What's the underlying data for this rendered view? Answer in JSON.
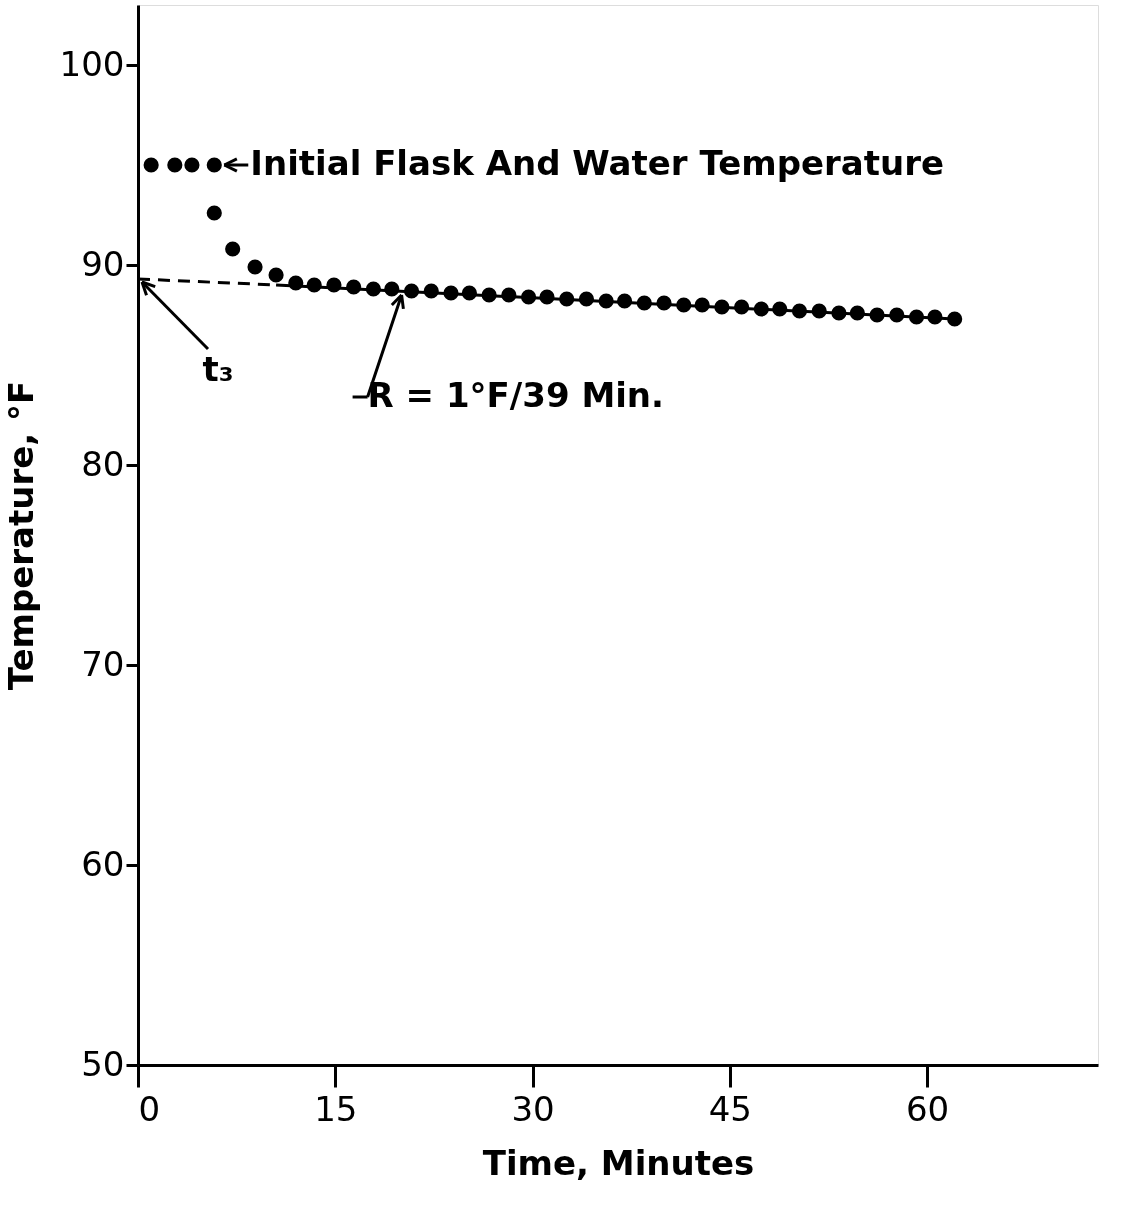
{
  "chart_data": {
    "type": "scatter",
    "xlabel": "Time, Minutes",
    "ylabel": "Temperature, °F",
    "xlim": [
      0,
      73
    ],
    "ylim": [
      50,
      103
    ],
    "xticks": [
      0,
      15,
      30,
      45,
      60
    ],
    "yticks": [
      50,
      60,
      70,
      80,
      90,
      100
    ],
    "grid": false,
    "series": [
      {
        "marker": "circle",
        "color": "#000000",
        "x": [
          1.0,
          2.8,
          4.1,
          5.8,
          5.8,
          7.2,
          8.9,
          10.5,
          12.0,
          13.4,
          14.9,
          16.4,
          17.9,
          19.3,
          20.8,
          22.3,
          23.8,
          25.2,
          26.7,
          28.2,
          29.7,
          31.1,
          32.6,
          34.1,
          35.6,
          37.0,
          38.5,
          40.0,
          41.5,
          42.9,
          44.4,
          45.9,
          47.4,
          48.8,
          50.3,
          51.8,
          53.3,
          54.7,
          56.2,
          57.7,
          59.2,
          60.6,
          62.1
        ],
        "values": [
          95.0,
          95.0,
          95.0,
          95.0,
          92.6,
          90.8,
          89.9,
          89.5,
          89.1,
          89.0,
          89.0,
          88.9,
          88.8,
          88.8,
          88.7,
          88.7,
          88.6,
          88.6,
          88.5,
          88.5,
          88.4,
          88.4,
          88.3,
          88.3,
          88.2,
          88.2,
          88.1,
          88.1,
          88.0,
          88.0,
          87.9,
          87.9,
          87.8,
          87.8,
          87.7,
          87.7,
          87.6,
          87.6,
          87.5,
          87.5,
          87.4,
          87.4,
          87.3
        ]
      },
      {
        "type": "line",
        "line_style": "solid",
        "marker": "none",
        "color": "#000000",
        "x": [
          10.5,
          62.1
        ],
        "values": [
          89.0,
          87.3
        ]
      },
      {
        "type": "line",
        "line_style": "dashed",
        "marker": "none",
        "color": "#000000",
        "x": [
          0,
          10.5
        ],
        "values": [
          89.3,
          89.0
        ]
      }
    ],
    "annotations": [
      {
        "text": "Initial Flask And Water Temperature",
        "x": 5.8,
        "y": 95.0
      },
      {
        "text": "t₃",
        "x": 0,
        "y": 89.3
      },
      {
        "text": "R = 1°F/39 Min.",
        "x": 20.5,
        "y": 88.7
      }
    ]
  }
}
